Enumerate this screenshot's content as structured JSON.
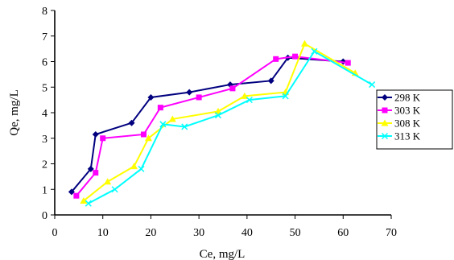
{
  "chart_data": {
    "type": "line",
    "xlabel": "Ce, mg/L",
    "ylabel": "Qe, mg/L",
    "xlim": [
      0,
      70
    ],
    "ylim": [
      0,
      8
    ],
    "xticks": [
      0,
      10,
      20,
      30,
      40,
      50,
      60,
      70
    ],
    "yticks": [
      0,
      1,
      2,
      3,
      4,
      5,
      6,
      7,
      8
    ],
    "grid": false,
    "legend": "right",
    "series": [
      {
        "name": "298 K",
        "color": "#00007f",
        "marker": "diamond",
        "points": [
          [
            3.5,
            0.9
          ],
          [
            7.5,
            1.8
          ],
          [
            8.5,
            3.15
          ],
          [
            16,
            3.6
          ],
          [
            20,
            4.6
          ],
          [
            28,
            4.8
          ],
          [
            36.5,
            5.1
          ],
          [
            45,
            5.25
          ],
          [
            48.5,
            6.15
          ],
          [
            60,
            6.0
          ]
        ]
      },
      {
        "name": "303 K",
        "color": "#ff00ff",
        "marker": "square",
        "points": [
          [
            4.5,
            0.75
          ],
          [
            8.5,
            1.65
          ],
          [
            10,
            3.0
          ],
          [
            18.5,
            3.15
          ],
          [
            22,
            4.2
          ],
          [
            30,
            4.6
          ],
          [
            37,
            4.95
          ],
          [
            46,
            6.1
          ],
          [
            50,
            6.2
          ],
          [
            61,
            5.95
          ]
        ]
      },
      {
        "name": "308 K",
        "color": "#ffff00",
        "marker": "triangle",
        "points": [
          [
            6,
            0.55
          ],
          [
            11,
            1.3
          ],
          [
            16.5,
            1.9
          ],
          [
            19.5,
            3.0
          ],
          [
            24.5,
            3.75
          ],
          [
            34,
            4.05
          ],
          [
            39.5,
            4.65
          ],
          [
            48,
            4.8
          ],
          [
            52,
            6.7
          ],
          [
            62.5,
            5.55
          ]
        ]
      },
      {
        "name": "313 K",
        "color": "#00ffff",
        "marker": "x",
        "points": [
          [
            7,
            0.45
          ],
          [
            12.5,
            1.0
          ],
          [
            18,
            1.8
          ],
          [
            22.5,
            3.55
          ],
          [
            27,
            3.45
          ],
          [
            34,
            3.9
          ],
          [
            40.5,
            4.5
          ],
          [
            48,
            4.65
          ],
          [
            54,
            6.4
          ],
          [
            66,
            5.1
          ]
        ]
      }
    ]
  }
}
